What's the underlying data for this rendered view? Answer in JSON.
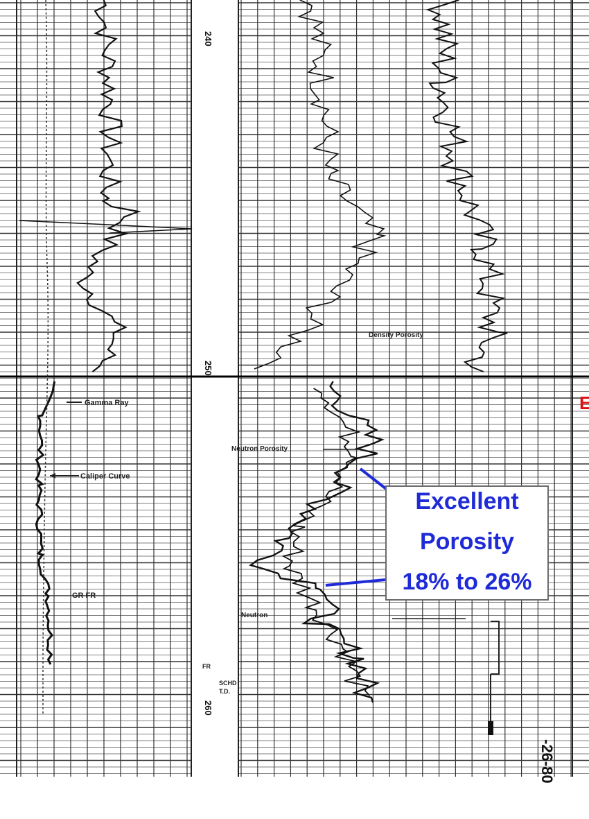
{
  "chart_data": {
    "type": "line",
    "title": "",
    "tracks": [
      {
        "name": "track-1",
        "curves": [
          "Gamma Ray",
          "Caliper Curve"
        ]
      },
      {
        "name": "depth-track",
        "depth_labels": [
          "240",
          "250",
          "260"
        ]
      },
      {
        "name": "track-2",
        "curves": [
          "Neutron Porosity",
          "Density Porosity"
        ]
      }
    ],
    "depth_ticks": [
      "240",
      "250",
      "260"
    ],
    "annotations": {
      "gamma_ray": "Gamma Ray",
      "caliper": "Caliper Curve",
      "gr_fr": "GR FR",
      "neutron_porosity": "Neutron Porosity",
      "neutron": "Neutron",
      "density_porosity": "Density Porosity",
      "fr": "FR",
      "schd": "SCHD",
      "td": "T.D.",
      "bottom_date": "-26-80"
    },
    "callout": {
      "line1": "Excellent",
      "line2": "Porosity",
      "line3": "18% to 26%"
    },
    "edge_letter": "E",
    "colors": {
      "callout_text": "#1f2bd6",
      "callout_border": "#6b6b6b",
      "arrow": "#1f2bd6",
      "edge_letter": "#e01010",
      "grid": "#3a3a3a",
      "curve": "#111111"
    }
  }
}
